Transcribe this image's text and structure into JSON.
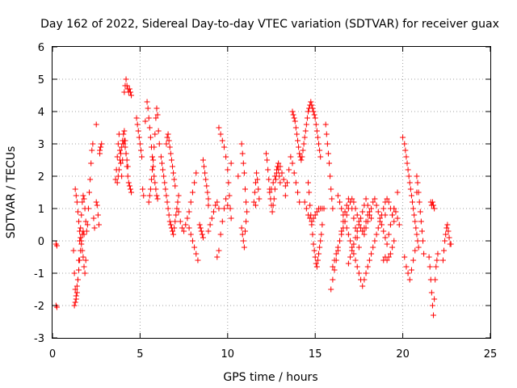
{
  "chart_data": {
    "type": "scatter",
    "title": "Day 162 of 2022, Sidereal Day-to-day VTEC variation (SDTVAR) for receiver guax",
    "xlabel": "GPS time / hours",
    "ylabel": "SDTVAR / TECUs",
    "xlim": [
      0,
      25
    ],
    "ylim": [
      -3,
      6
    ],
    "xticks": [
      "0",
      "5",
      "10",
      "15",
      "20",
      "25"
    ],
    "yticks": [
      "-3",
      "-2",
      "-1",
      "0",
      "1",
      "2",
      "3",
      "4",
      "5",
      "6"
    ],
    "grid": true,
    "marker": "+",
    "marker_color": "#ff0000",
    "series": [
      {
        "name": "SDTVAR",
        "x": [
          0.2,
          0.25,
          0.2,
          0.25,
          1.2,
          1.25,
          1.3,
          1.35,
          1.4,
          1.45,
          1.5,
          1.55,
          1.6,
          1.65,
          1.7,
          1.75,
          1.8,
          1.85,
          1.9,
          1.95,
          2.0,
          2.05,
          2.1,
          2.15,
          2.2,
          2.25,
          2.3,
          2.35,
          2.4,
          1.3,
          1.35,
          1.4,
          1.45,
          1.5,
          1.55,
          1.6,
          1.65,
          1.7,
          1.75,
          1.8,
          1.85,
          1.9,
          1.25,
          1.3,
          1.35,
          1.4,
          1.45,
          1.5,
          1.55,
          1.6,
          1.65,
          1.7,
          1.75,
          1.8,
          2.5,
          2.55,
          2.6,
          2.65,
          2.7,
          2.75,
          2.8,
          3.6,
          3.65,
          3.7,
          3.75,
          3.8,
          3.85,
          3.9,
          3.95,
          4.0,
          4.05,
          4.1,
          4.15,
          4.2,
          4.25,
          4.3,
          4.35,
          4.4,
          4.45,
          4.5,
          3.7,
          3.75,
          3.8,
          3.85,
          3.9,
          3.95,
          4.0,
          4.05,
          4.1,
          4.15,
          4.2,
          4.25,
          4.3,
          4.1,
          4.15,
          4.2,
          4.25,
          4.3,
          4.35,
          4.4,
          4.45,
          4.5,
          4.8,
          4.85,
          4.9,
          4.95,
          5.0,
          5.05,
          5.1,
          5.15,
          5.2,
          5.4,
          5.45,
          5.5,
          5.55,
          5.6,
          5.65,
          5.7,
          5.75,
          5.8,
          5.85,
          5.9,
          5.95,
          6.0,
          5.5,
          5.55,
          5.6,
          5.65,
          5.7,
          5.75,
          5.8,
          5.85,
          5.9,
          5.95,
          6.0,
          6.05,
          6.1,
          6.2,
          6.25,
          6.3,
          6.35,
          6.4,
          6.45,
          6.5,
          6.55,
          6.6,
          6.65,
          6.7,
          6.75,
          6.8,
          6.85,
          6.9,
          6.95,
          7.0,
          7.05,
          7.1,
          7.15,
          7.2,
          6.5,
          6.55,
          6.6,
          6.65,
          6.7,
          6.75,
          6.8,
          6.85,
          6.9,
          6.95,
          7.0,
          7.2,
          7.3,
          7.4,
          7.5,
          7.6,
          7.7,
          7.8,
          7.9,
          8.0,
          8.1,
          8.2,
          7.8,
          7.9,
          8.0,
          8.1,
          8.2,
          8.3,
          8.4,
          8.45,
          8.5,
          8.55,
          8.6,
          8.6,
          8.65,
          8.7,
          8.75,
          8.8,
          8.85,
          8.9,
          8.9,
          9.0,
          9.1,
          9.2,
          9.3,
          9.4,
          9.5,
          9.5,
          9.6,
          9.7,
          9.8,
          9.9,
          10.0,
          10.05,
          10.1,
          10.15,
          10.2,
          9.4,
          9.5,
          9.6,
          9.7,
          9.8,
          9.9,
          10.0,
          10.8,
          10.85,
          10.9,
          10.95,
          11.0,
          11.05,
          11.1,
          10.8,
          10.85,
          10.9,
          10.95,
          11.0,
          11.05,
          11.5,
          11.55,
          11.6,
          11.65,
          11.7,
          11.75,
          11.8,
          12.2,
          12.25,
          12.3,
          12.35,
          12.4,
          12.45,
          12.5,
          12.55,
          12.6,
          12.65,
          12.7,
          12.75,
          12.8,
          12.85,
          12.9,
          12.95,
          13.0,
          12.4,
          12.5,
          12.6,
          12.7,
          12.8,
          12.9,
          13.0,
          13.1,
          13.2,
          13.3,
          13.3,
          13.4,
          13.5,
          13.6,
          13.7,
          13.8,
          13.9,
          14.0,
          14.1,
          13.7,
          13.75,
          13.8,
          13.85,
          13.9,
          13.95,
          14.0,
          14.05,
          14.1,
          14.15,
          14.2,
          14.25,
          14.3,
          14.35,
          14.4,
          14.45,
          14.5,
          14.55,
          14.6,
          14.65,
          14.7,
          14.75,
          14.8,
          14.85,
          14.9,
          14.95,
          15.0,
          15.05,
          15.1,
          15.15,
          15.2,
          15.25,
          15.3,
          14.6,
          14.65,
          14.7,
          14.75,
          14.8,
          14.85,
          14.9,
          14.95,
          15.0,
          15.05,
          15.1,
          15.15,
          15.2,
          15.25,
          15.3,
          15.35,
          15.4,
          14.4,
          14.5,
          14.6,
          14.7,
          14.8,
          14.9,
          15.0,
          15.1,
          15.2,
          15.3,
          15.4,
          15.5,
          15.6,
          15.65,
          15.7,
          15.75,
          15.8,
          15.85,
          15.9,
          15.95,
          16.0,
          15.9,
          16.0,
          16.1,
          16.2,
          16.3,
          16.4,
          16.5,
          16.6,
          16.7,
          16.8,
          16.9,
          17.0,
          17.1,
          17.2,
          17.3,
          17.4,
          17.5,
          16.0,
          16.1,
          16.2,
          16.3,
          16.4,
          16.5,
          16.6,
          16.7,
          16.8,
          16.9,
          17.0,
          17.1,
          17.2,
          17.3,
          17.4,
          17.5,
          17.6,
          17.7,
          17.8,
          17.9,
          18.0,
          16.3,
          16.4,
          16.5,
          16.6,
          16.7,
          16.8,
          16.9,
          17.0,
          17.1,
          17.2,
          17.3,
          17.4,
          17.5,
          17.6,
          17.7,
          17.8,
          17.9,
          18.0,
          18.1,
          18.2,
          18.3,
          18.4,
          18.5,
          18.6,
          18.7,
          18.8,
          18.9,
          19.0,
          19.1,
          19.2,
          19.3,
          19.4,
          19.5,
          16.9,
          17.0,
          17.1,
          17.2,
          17.3,
          17.4,
          17.5,
          17.6,
          17.7,
          17.8,
          17.9,
          18.0,
          18.1,
          18.2,
          17.8,
          17.9,
          18.0,
          18.1,
          18.2,
          18.3,
          18.4,
          18.5,
          18.6,
          18.7,
          18.8,
          18.9,
          19.0,
          19.1,
          19.2,
          19.3,
          19.4,
          19.5,
          18.9,
          19.0,
          19.1,
          19.2,
          19.3,
          19.4,
          19.5,
          19.4,
          19.5,
          19.6,
          19.7,
          19.8,
          20.1,
          20.15,
          20.2,
          20.25,
          20.3,
          20.35,
          20.4,
          20.45,
          20.5,
          20.55,
          20.6,
          20.65,
          20.7,
          20.75,
          20.8,
          20.85,
          20.9,
          20.1,
          20.2,
          20.3,
          20.4,
          20.5,
          20.6,
          20.7,
          20.8,
          20.85,
          20.9,
          20.95,
          21.0,
          21.05,
          21.1,
          21.15,
          21.2,
          21.5,
          21.55,
          21.6,
          21.65,
          21.7,
          21.75,
          21.8,
          21.85,
          21.9,
          21.95,
          22.0,
          21.6,
          21.65,
          21.7,
          21.75,
          21.8,
          22.3,
          22.35,
          22.4,
          22.45,
          22.5,
          22.55,
          22.6,
          22.65,
          22.7,
          22.75,
          2.5,
          2.7,
          5.3,
          8.9,
          10.2,
          10.6,
          11.6,
          19.0,
          19.7,
          20.0,
          20.8
        ],
        "y": [
          -0.1,
          -0.15,
          -2.0,
          -2.05,
          -0.3,
          -1.0,
          -1.5,
          -1.8,
          -1.6,
          -1.2,
          -0.6,
          0.0,
          0.4,
          0.8,
          1.2,
          1.4,
          1.3,
          1.0,
          0.6,
          0.3,
          0.5,
          1.0,
          1.5,
          1.9,
          2.4,
          2.8,
          3.0,
          0.7,
          0.4,
          1.6,
          1.4,
          1.2,
          0.9,
          0.6,
          0.3,
          0.1,
          -0.1,
          -0.3,
          -0.5,
          -0.8,
          -1.0,
          -0.6,
          -2.0,
          -1.9,
          -1.7,
          -1.4,
          -1.2,
          -0.9,
          -0.6,
          -0.3,
          0.0,
          0.2,
          0.3,
          0.2,
          1.2,
          1.1,
          0.8,
          0.5,
          2.7,
          2.9,
          3.0,
          1.9,
          2.2,
          2.6,
          3.0,
          3.3,
          2.8,
          2.4,
          2.0,
          2.5,
          3.0,
          3.4,
          3.1,
          2.7,
          2.3,
          2.0,
          1.8,
          1.7,
          1.6,
          1.5,
          1.8,
          2.0,
          2.2,
          2.5,
          2.7,
          2.9,
          3.1,
          3.3,
          3.1,
          2.9,
          2.7,
          2.5,
          2.3,
          4.6,
          4.8,
          5.0,
          4.8,
          4.7,
          4.6,
          4.7,
          4.6,
          4.5,
          3.8,
          3.6,
          3.4,
          3.2,
          3.0,
          2.8,
          2.6,
          1.6,
          1.4,
          4.3,
          4.1,
          3.8,
          3.5,
          3.2,
          2.9,
          2.6,
          2.3,
          2.0,
          1.8,
          1.6,
          1.4,
          1.3,
          1.2,
          1.4,
          1.6,
          1.9,
          2.2,
          2.5,
          2.9,
          3.3,
          3.8,
          4.1,
          3.9,
          3.4,
          3.0,
          2.6,
          2.4,
          2.2,
          2.0,
          1.8,
          1.6,
          1.4,
          1.2,
          1.0,
          0.8,
          0.6,
          0.5,
          0.4,
          0.3,
          0.2,
          0.4,
          0.6,
          0.8,
          1.0,
          1.2,
          1.4,
          3.0,
          3.2,
          3.3,
          3.1,
          2.9,
          2.7,
          2.5,
          2.3,
          2.1,
          1.9,
          1.7,
          0.9,
          0.6,
          0.4,
          0.3,
          0.5,
          0.7,
          0.9,
          1.2,
          1.5,
          1.8,
          2.1,
          0.4,
          0.2,
          0.0,
          -0.2,
          -0.4,
          -0.6,
          0.5,
          0.4,
          0.3,
          0.2,
          0.1,
          2.5,
          2.3,
          2.1,
          1.9,
          1.7,
          1.5,
          1.3,
          0.3,
          0.5,
          0.7,
          0.9,
          1.1,
          1.2,
          1.0,
          3.5,
          3.3,
          3.1,
          2.9,
          2.6,
          2.2,
          1.8,
          1.4,
          1.0,
          0.7,
          -0.5,
          -0.3,
          0.2,
          0.6,
          1.0,
          1.3,
          1.1,
          3.0,
          2.7,
          2.4,
          2.1,
          1.6,
          1.2,
          0.9,
          0.4,
          0.2,
          0.0,
          -0.2,
          0.3,
          0.6,
          1.2,
          1.5,
          1.8,
          2.1,
          1.9,
          1.6,
          1.3,
          2.7,
          2.5,
          2.2,
          1.9,
          1.6,
          1.3,
          1.1,
          0.9,
          1.1,
          1.3,
          1.6,
          1.9,
          2.1,
          2.3,
          2.2,
          2.0,
          1.8,
          1.5,
          1.6,
          1.8,
          2.0,
          2.2,
          2.4,
          2.3,
          2.1,
          1.9,
          1.7,
          1.4,
          1.8,
          2.2,
          2.6,
          2.4,
          2.1,
          1.8,
          1.5,
          1.2,
          4.0,
          3.9,
          3.8,
          3.7,
          3.5,
          3.3,
          3.1,
          2.9,
          2.7,
          2.6,
          2.5,
          2.6,
          2.8,
          3.0,
          3.2,
          3.4,
          3.6,
          3.8,
          4.0,
          4.1,
          4.2,
          4.3,
          4.2,
          4.1,
          4.0,
          3.9,
          3.8,
          3.6,
          3.4,
          3.2,
          3.0,
          2.8,
          2.6,
          1.8,
          1.5,
          1.1,
          0.8,
          0.5,
          0.2,
          -0.1,
          -0.3,
          -0.5,
          -0.7,
          -0.8,
          -0.6,
          -0.4,
          -0.2,
          0.0,
          0.2,
          0.5,
          1.2,
          1.0,
          0.8,
          0.7,
          0.6,
          0.7,
          0.8,
          0.9,
          1.0,
          1.0,
          1.0,
          1.0,
          3.6,
          3.3,
          3.0,
          2.7,
          2.4,
          2.0,
          1.6,
          1.3,
          1.0,
          -1.5,
          -1.2,
          -0.9,
          -0.6,
          -0.3,
          0.0,
          0.3,
          0.6,
          0.9,
          1.1,
          1.3,
          1.2,
          1.0,
          0.7,
          0.4,
          0.1,
          -0.2,
          -0.8,
          -0.6,
          -0.4,
          -0.2,
          0.0,
          0.2,
          0.4,
          0.6,
          0.8,
          1.0,
          1.2,
          1.3,
          1.2,
          1.0,
          0.8,
          0.6,
          0.4,
          0.3,
          0.4,
          0.6,
          0.8,
          1.4,
          1.2,
          1.0,
          0.8,
          0.6,
          0.4,
          0.2,
          0.0,
          -0.2,
          -0.4,
          -0.6,
          -0.8,
          -1.0,
          -1.2,
          -1.4,
          -1.2,
          -1.0,
          -0.8,
          -0.6,
          -0.4,
          -0.2,
          0.0,
          0.2,
          0.4,
          0.6,
          0.8,
          1.0,
          1.2,
          1.3,
          1.2,
          1.0,
          0.8,
          0.6,
          -0.7,
          -0.5,
          -0.3,
          -0.1,
          0.1,
          0.3,
          0.5,
          0.7,
          0.9,
          1.1,
          1.3,
          1.1,
          0.9,
          0.7,
          0.2,
          0.4,
          0.6,
          0.8,
          1.0,
          1.2,
          1.3,
          1.1,
          0.9,
          0.7,
          0.5,
          0.3,
          0.1,
          -0.1,
          0.2,
          0.5,
          0.8,
          1.0,
          -0.6,
          -0.5,
          -0.6,
          -0.5,
          -0.4,
          -0.2,
          0.0,
          0.8,
          1.0,
          0.9,
          0.7,
          0.5,
          3.0,
          2.8,
          2.6,
          2.4,
          2.2,
          2.0,
          1.8,
          1.6,
          1.4,
          1.2,
          1.0,
          0.8,
          0.6,
          0.4,
          0.2,
          0.0,
          -0.2,
          -0.5,
          -0.8,
          -1.0,
          -1.2,
          -0.9,
          -0.6,
          -0.3,
          2.0,
          1.8,
          1.5,
          1.2,
          0.9,
          0.6,
          0.3,
          0.0,
          -0.4,
          -0.5,
          -0.8,
          -1.2,
          -1.6,
          -2.0,
          -2.3,
          -1.8,
          -1.2,
          -0.8,
          -0.6,
          -0.4,
          1.2,
          1.1,
          1.2,
          1.1,
          1.0,
          -0.6,
          -0.3,
          0.0,
          0.2,
          0.4,
          0.5,
          0.3,
          0.1,
          -0.1,
          -0.1,
          3.6,
          2.8,
          3.7,
          1.1,
          2.4,
          2.0,
          1.1,
          0.8,
          1.5,
          3.2,
          1.5
        ]
      }
    ]
  }
}
